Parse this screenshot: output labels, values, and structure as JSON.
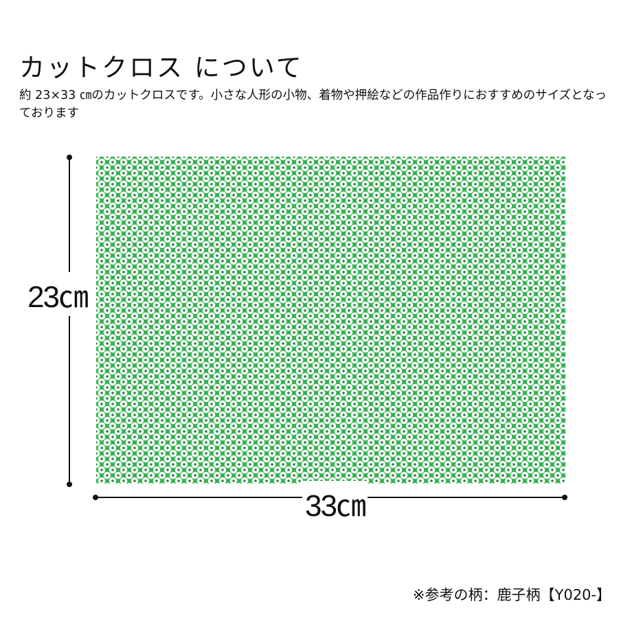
{
  "title": "カットクロス について",
  "description": "約 23×33 ㎝のカットクロスです。小さな人形の小物、着物や押絵などの作品作りにおすすめのサイズとなっております",
  "dimensions": {
    "height_label": "23㎝",
    "width_label": "33㎝"
  },
  "fabric": {
    "pattern": "kanoko-shibori dots",
    "base_color": "#2fb24f",
    "dot_color": "#f4fbf3"
  },
  "note": "※参考の柄：鹿子柄【Y020-】"
}
